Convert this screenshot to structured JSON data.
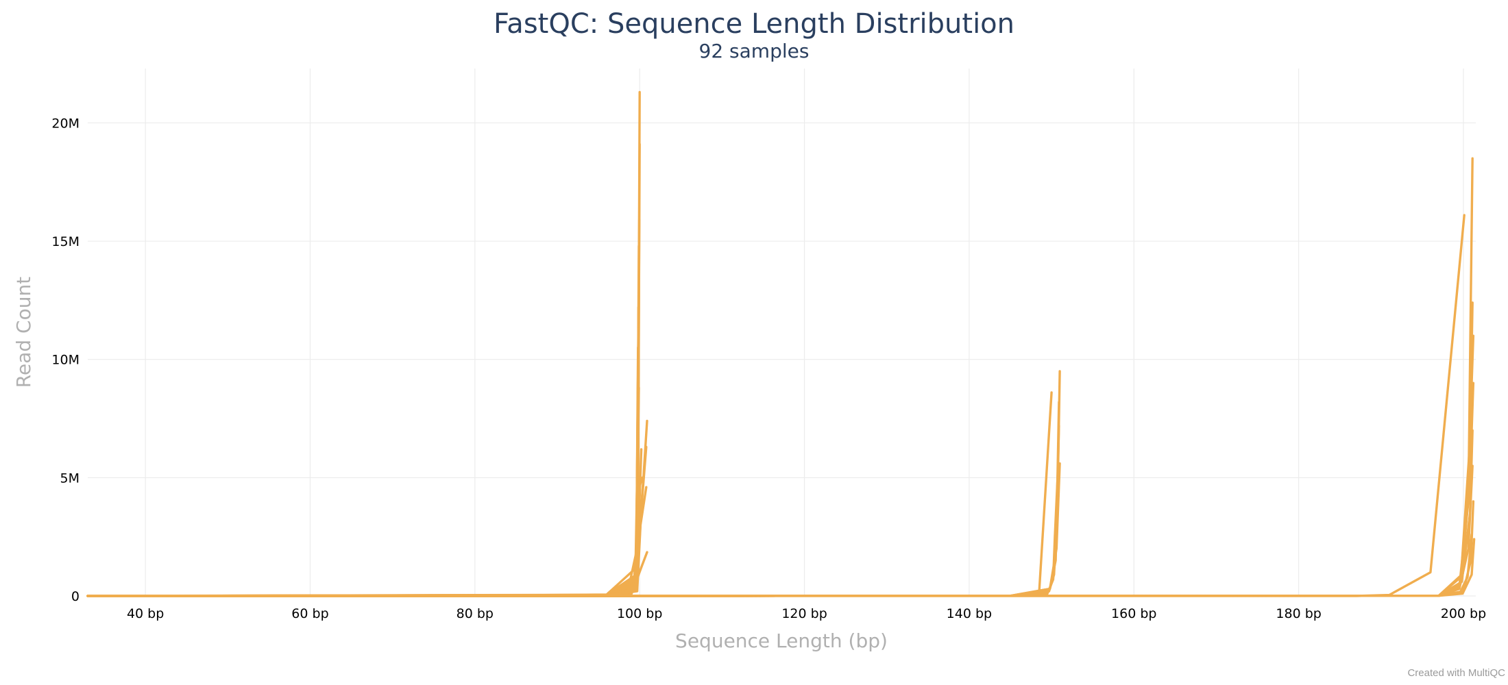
{
  "title": "FastQC: Sequence Length Distribution",
  "subtitle": "92 samples",
  "credit": "Created with MultiQC",
  "series_color": "#f0ad4e",
  "chart_data": {
    "type": "line",
    "title": "FastQC: Sequence Length Distribution",
    "subtitle": "92 samples",
    "xlabel": "Sequence Length (bp)",
    "ylabel": "Read Count",
    "xlim": [
      33,
      201.5
    ],
    "ylim": [
      0,
      22300000
    ],
    "x_ticks": [
      40,
      60,
      80,
      100,
      120,
      140,
      160,
      180,
      200
    ],
    "x_tick_labels": [
      "40 bp",
      "60 bp",
      "80 bp",
      "100 bp",
      "120 bp",
      "140 bp",
      "160 bp",
      "180 bp",
      "200 bp"
    ],
    "y_ticks": [
      0,
      5000000,
      10000000,
      15000000,
      20000000
    ],
    "y_tick_labels": [
      "0",
      "5M",
      "10M",
      "15M",
      "20M"
    ],
    "grid": true,
    "legend": "none",
    "sample_count": 92,
    "series": [
      {
        "x": [
          33,
          80,
          96,
          99.6,
          99.8,
          100
        ],
        "y": [
          0,
          15000,
          60000,
          1200000,
          5000000,
          21300000
        ]
      },
      {
        "x": [
          33,
          96,
          99.6,
          99.8,
          100
        ],
        "y": [
          0,
          50000,
          900000,
          4000000,
          19100000
        ]
      },
      {
        "x": [
          33,
          96,
          99.5,
          99.8,
          99.95
        ],
        "y": [
          0,
          40000,
          800000,
          3500000,
          15900000
        ]
      },
      {
        "x": [
          33,
          96,
          99.5,
          99.7,
          99.9
        ],
        "y": [
          0,
          40000,
          700000,
          3000000,
          14800000
        ]
      },
      {
        "x": [
          33,
          96,
          99.4,
          99.7,
          99.9
        ],
        "y": [
          0,
          35000,
          600000,
          2500000,
          13100000
        ]
      },
      {
        "x": [
          33,
          96,
          99.4,
          99.7,
          99.85
        ],
        "y": [
          0,
          30000,
          550000,
          2200000,
          12200000
        ]
      },
      {
        "x": [
          33,
          96,
          99.3,
          99.6,
          99.85
        ],
        "y": [
          0,
          30000,
          500000,
          2000000,
          11300000
        ]
      },
      {
        "x": [
          33,
          96,
          99.3,
          99.6,
          99.8
        ],
        "y": [
          0,
          25000,
          400000,
          1800000,
          10500000
        ]
      },
      {
        "x": [
          33,
          96,
          99.2,
          99.6,
          99.8
        ],
        "y": [
          0,
          25000,
          350000,
          1500000,
          9600000
        ]
      },
      {
        "x": [
          33,
          96,
          99.2,
          99.5,
          99.9
        ],
        "y": [
          0,
          20000,
          300000,
          1300000,
          8800000
        ]
      },
      {
        "x": [
          33,
          96,
          99.3,
          99.7,
          100.2
        ],
        "y": [
          0,
          20000,
          200000,
          1200000,
          6200000
        ]
      },
      {
        "x": [
          33,
          96,
          99.3,
          100,
          100.5
        ],
        "y": [
          0,
          20000,
          300000,
          3000000,
          5100000
        ]
      },
      {
        "x": [
          33,
          96,
          98.5,
          100,
          100.9
        ],
        "y": [
          0,
          15000,
          100000,
          2500000,
          7400000
        ]
      },
      {
        "x": [
          33,
          96,
          99.5,
          100,
          100.8
        ],
        "y": [
          0,
          15000,
          250000,
          2800000,
          6300000
        ]
      },
      {
        "x": [
          33,
          96,
          99.7,
          100.1,
          100.8
        ],
        "y": [
          0,
          10000,
          200000,
          3000000,
          4600000
        ]
      },
      {
        "x": [
          33,
          96,
          99,
          100.3,
          100.9
        ],
        "y": [
          0,
          10000,
          80000,
          1300000,
          1850000
        ]
      },
      {
        "x": [
          33,
          96,
          99.5,
          99.9,
          100.3
        ],
        "y": [
          0,
          10000,
          200000,
          4500000,
          5000000
        ]
      },
      {
        "x": [
          33,
          145,
          147.7,
          148.5,
          150
        ],
        "y": [
          0,
          5000,
          80000,
          200000,
          8600000
        ]
      },
      {
        "x": [
          33,
          145,
          149.5,
          150.2,
          150.4,
          150.8,
          151
        ],
        "y": [
          0,
          5000,
          100000,
          700000,
          2500000,
          5500000,
          9500000
        ]
      },
      {
        "x": [
          33,
          145,
          149.7,
          150.3,
          150.6,
          150.9
        ],
        "y": [
          0,
          5000,
          200000,
          900000,
          2800000,
          8200000
        ]
      },
      {
        "x": [
          33,
          145,
          149.8,
          150.5,
          150.9
        ],
        "y": [
          0,
          5000,
          300000,
          1500000,
          7200000
        ]
      },
      {
        "x": [
          33,
          145,
          149.8,
          150.6,
          151
        ],
        "y": [
          0,
          5000,
          300000,
          2000000,
          5600000
        ]
      },
      {
        "x": [
          33,
          187,
          191,
          196,
          200.1
        ],
        "y": [
          0,
          0,
          40000,
          1000000,
          16100000
        ]
      },
      {
        "x": [
          33,
          197,
          199.5,
          200.6,
          201.1
        ],
        "y": [
          0,
          10000,
          400000,
          4000000,
          18500000
        ]
      },
      {
        "x": [
          33,
          197,
          199.6,
          200.7,
          201.1
        ],
        "y": [
          0,
          10000,
          500000,
          4500000,
          12400000
        ]
      },
      {
        "x": [
          33,
          197,
          199.7,
          200.7,
          201.2
        ],
        "y": [
          0,
          10000,
          800000,
          6000000,
          11000000
        ]
      },
      {
        "x": [
          33,
          197,
          199.8,
          200.8,
          201.2
        ],
        "y": [
          0,
          10000,
          900000,
          5000000,
          9000000
        ]
      },
      {
        "x": [
          33,
          197,
          199.8,
          200.8,
          201.1
        ],
        "y": [
          0,
          10000,
          600000,
          3500000,
          7000000
        ]
      },
      {
        "x": [
          33,
          197,
          199.5,
          200.6,
          201.1
        ],
        "y": [
          0,
          10000,
          300000,
          2000000,
          5500000
        ]
      },
      {
        "x": [
          33,
          197,
          200,
          200.9,
          201.2
        ],
        "y": [
          0,
          10000,
          200000,
          1500000,
          4000000
        ]
      },
      {
        "x": [
          33,
          197,
          199.6,
          200.5,
          201
        ],
        "y": [
          0,
          10000,
          150000,
          800000,
          2600000
        ]
      },
      {
        "x": [
          33,
          197,
          199.9,
          201,
          201.3
        ],
        "y": [
          0,
          10000,
          100000,
          900000,
          2400000
        ]
      }
    ]
  }
}
